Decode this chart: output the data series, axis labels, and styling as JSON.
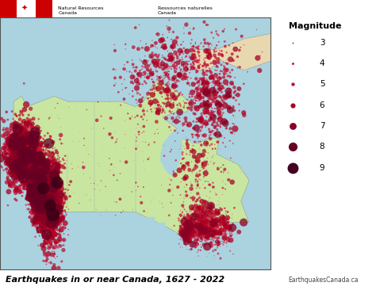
{
  "title": "Earthquakes in or near Canada, 1627 - 2022",
  "website": "EarthquakesCanada.ca",
  "header_en": "Natural Resources\nCanada",
  "header_fr": "Ressources naturelles\nCanada",
  "legend_title": "Magnitude",
  "legend_magnitudes": [
    3,
    4,
    5,
    6,
    7,
    8,
    9
  ],
  "legend_sizes_pt": [
    2,
    5,
    10,
    20,
    40,
    65,
    100
  ],
  "legend_colors": [
    "#cc3355",
    "#cc2244",
    "#bb1133",
    "#aa0022",
    "#880022",
    "#660022",
    "#440020"
  ],
  "dot_colors_by_mag": {
    "3": "#dd3355",
    "4": "#cc2244",
    "5": "#bb1133",
    "6": "#aa0022",
    "7": "#880022",
    "8": "#660022",
    "9": "#330015"
  },
  "ocean_color": "#aad3df",
  "land_color": "#c8e6a0",
  "box_bg": "#fffff0",
  "border_color": "#888888",
  "figsize": [
    4.74,
    3.66
  ],
  "dpi": 100,
  "flag_red": "#cc0000",
  "title_fontsize": 8,
  "legend_fontsize": 8,
  "header_fontsize": 5.5
}
